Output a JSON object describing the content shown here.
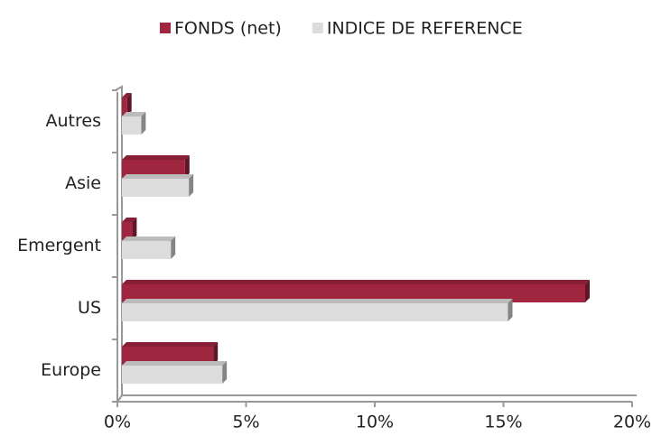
{
  "chart_data": {
    "type": "bar",
    "orientation": "horizontal",
    "categories": [
      "Autres",
      "Asie",
      "Emergent",
      "US",
      "Europe"
    ],
    "series": [
      {
        "name": "FONDS (net)",
        "color": "#a0253f",
        "values": [
          0.2,
          2.45,
          0.4,
          18.0,
          3.55
        ]
      },
      {
        "name": "INDICE DE REFERENCE",
        "color": "#dcdcdc",
        "values": [
          0.75,
          2.6,
          1.9,
          15.0,
          3.9
        ]
      }
    ],
    "xlim": [
      0,
      20
    ],
    "xticks": [
      {
        "value": 0,
        "label": "0%"
      },
      {
        "value": 5,
        "label": "5%"
      },
      {
        "value": 10,
        "label": "10%"
      },
      {
        "value": 15,
        "label": "15%"
      },
      {
        "value": 20,
        "label": "20%"
      }
    ],
    "legend": "top"
  }
}
